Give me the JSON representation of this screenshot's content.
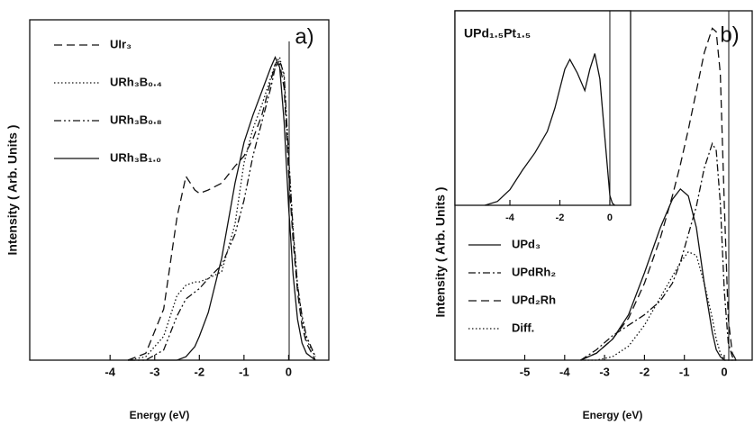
{
  "chart_data": [
    {
      "type": "line",
      "annotation": "a)",
      "x_label": "Energy (eV)",
      "y_label": "Intensity ( Arb. Units )",
      "xlim": [
        -5.8,
        0.9
      ],
      "ylim": [
        0,
        1
      ],
      "xticks": [
        -4,
        -3,
        -2,
        -1,
        0
      ],
      "x": [
        -3.6,
        -3.2,
        -2.8,
        -2.5,
        -2.3,
        -2.1,
        -2.0,
        -1.8,
        -1.5,
        -1.2,
        -1.0,
        -0.8,
        -0.6,
        -0.4,
        -0.3,
        -0.2,
        -0.1,
        0,
        0.1,
        0.2,
        0.3,
        0.4,
        0.6
      ],
      "series": [
        {
          "name": "UIr₃",
          "color": "#111111",
          "style": "dashed",
          "values": [
            0,
            0.02,
            0.15,
            0.42,
            0.54,
            0.5,
            0.49,
            0.5,
            0.52,
            0.57,
            0.6,
            0.65,
            0.72,
            0.82,
            0.87,
            0.87,
            0.8,
            0.55,
            0.35,
            0.2,
            0.1,
            0.05,
            0
          ]
        },
        {
          "name": "URh₃B₀.₄",
          "color": "#111111",
          "style": "dotted",
          "values": [
            0,
            0.01,
            0.07,
            0.19,
            0.22,
            0.23,
            0.23,
            0.24,
            0.26,
            0.4,
            0.58,
            0.68,
            0.75,
            0.83,
            0.87,
            0.89,
            0.83,
            0.6,
            0.38,
            0.22,
            0.12,
            0.06,
            0.01
          ]
        },
        {
          "name": "URh₃B₀.₈",
          "color": "#111111",
          "style": "dash-dot-dot",
          "values": [
            0,
            0,
            0.03,
            0.13,
            0.18,
            0.2,
            0.21,
            0.24,
            0.28,
            0.37,
            0.47,
            0.6,
            0.7,
            0.8,
            0.86,
            0.88,
            0.84,
            0.6,
            0.38,
            0.22,
            0.13,
            0.07,
            0.01
          ]
        },
        {
          "name": "URh₃B₁.₀",
          "color": "#111111",
          "style": "solid",
          "values": [
            0,
            0,
            0,
            0,
            0.01,
            0.04,
            0.07,
            0.14,
            0.3,
            0.52,
            0.64,
            0.72,
            0.79,
            0.86,
            0.89,
            0.86,
            0.7,
            0.45,
            0.25,
            0.12,
            0.05,
            0.02,
            0
          ]
        }
      ]
    },
    {
      "type": "line",
      "annotation": "b)",
      "x_label": "Energy (eV)",
      "y_label": "Intensity ( Arb. Units )",
      "xlim": [
        -6.75,
        0.7
      ],
      "ylim": [
        0,
        1
      ],
      "xticks": [
        -5,
        -4,
        -3,
        -2,
        -1,
        0
      ],
      "x": [
        -3.6,
        -3.2,
        -2.8,
        -2.4,
        -2.0,
        -1.6,
        -1.3,
        -1.1,
        -0.9,
        -0.7,
        -0.5,
        -0.3,
        -0.2,
        -0.1,
        0,
        0.1,
        0.2,
        0.3
      ],
      "series": [
        {
          "name": "UPd₃",
          "color": "#111111",
          "style": "solid",
          "values": [
            0,
            0.02,
            0.06,
            0.13,
            0.25,
            0.38,
            0.46,
            0.49,
            0.47,
            0.38,
            0.22,
            0.08,
            0.03,
            0.01,
            0,
            0,
            0,
            0
          ]
        },
        {
          "name": "UPdRh₂",
          "color": "#111111",
          "style": "dash-dot",
          "values": [
            0,
            0.03,
            0.07,
            0.1,
            0.13,
            0.17,
            0.22,
            0.28,
            0.36,
            0.44,
            0.55,
            0.62,
            0.6,
            0.45,
            0.2,
            0.05,
            0.01,
            0
          ]
        },
        {
          "name": "UPd₂Rh",
          "color": "#111111",
          "style": "dashed",
          "values": [
            0,
            0.02,
            0.06,
            0.12,
            0.22,
            0.35,
            0.47,
            0.56,
            0.66,
            0.77,
            0.88,
            0.95,
            0.94,
            0.82,
            0.45,
            0.12,
            0.02,
            0
          ]
        },
        {
          "name": "Diff.",
          "color": "#111111",
          "style": "dotted",
          "values": [
            0,
            0,
            0.01,
            0.04,
            0.1,
            0.18,
            0.24,
            0.28,
            0.31,
            0.3,
            0.22,
            0.12,
            0.06,
            0.02,
            0,
            0,
            0,
            0
          ]
        }
      ]
    },
    {
      "type": "line",
      "title": "UPd₁.₅Pt₁.₅",
      "xlim": [
        -6.2,
        0.83
      ],
      "ylim": [
        0,
        1
      ],
      "xticks": [
        -4,
        -2,
        0
      ],
      "x": [
        -5,
        -4.5,
        -4,
        -3.5,
        -3,
        -2.5,
        -2.2,
        -2,
        -1.8,
        -1.6,
        -1.3,
        -1.0,
        -0.8,
        -0.6,
        -0.4,
        -0.2,
        0,
        0.1,
        0.2
      ],
      "series": [
        {
          "color": "#111111",
          "style": "solid",
          "values": [
            0,
            0.02,
            0.08,
            0.18,
            0.27,
            0.38,
            0.5,
            0.6,
            0.7,
            0.75,
            0.68,
            0.59,
            0.7,
            0.78,
            0.65,
            0.35,
            0.05,
            0.01,
            0
          ]
        }
      ]
    }
  ]
}
